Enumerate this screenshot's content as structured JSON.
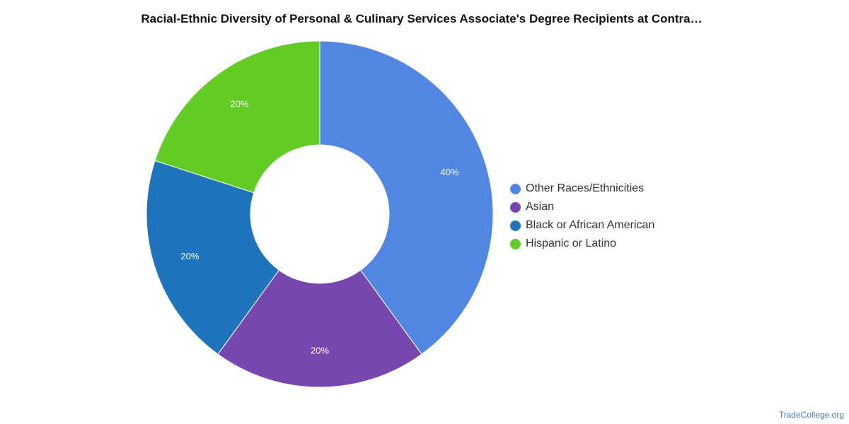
{
  "chart_data": {
    "type": "pie",
    "variant": "donut",
    "title": "Racial-Ethnic Diversity of Personal & Culinary Services Associate's Degree Recipients at Contra…",
    "series": [
      {
        "name": "Other Races/Ethnicities",
        "value": 40,
        "label": "40%",
        "color": "#5286e3"
      },
      {
        "name": "Asian",
        "value": 20,
        "label": "20%",
        "color": "#7747b0"
      },
      {
        "name": "Black or African American",
        "value": 20,
        "label": "20%",
        "color": "#1f74bc"
      },
      {
        "name": "Hispanic or Latino",
        "value": 20,
        "label": "20%",
        "color": "#62cc25"
      }
    ],
    "legend_position": "right"
  },
  "credit": "TradeCollege.org"
}
